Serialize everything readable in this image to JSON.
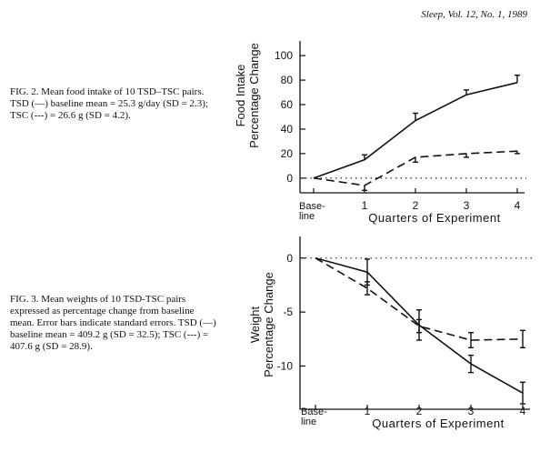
{
  "header": {
    "citation": "Sleep, Vol. 12, No. 1, 1989"
  },
  "captions": {
    "fig2": {
      "label": "FIG. 2.",
      "text": "Mean food intake of 10 TSD–TSC pairs. TSD (—) baseline mean = 25.3 g/day (SD = 2.3); TSC (---) = 26.6 g (SD = 4.2)."
    },
    "fig3": {
      "label": "FIG. 3.",
      "text": "Mean weights of 10 TSD-TSC pairs expressed as percentage change from baseline mean. Error bars indicate standard errors. TSD (—) baseline mean = 409.2 g (SD = 32.5); TSC (---) = 407.6 g (SD = 28.9)."
    }
  },
  "chart_data": [
    {
      "type": "line",
      "title": "",
      "ylabel": "Food Intake Percentage Change",
      "xlabel": "Quarters of Experiment",
      "categories": [
        "Base-line",
        "1",
        "2",
        "3",
        "4"
      ],
      "x": [
        0,
        1,
        2,
        3,
        4
      ],
      "ylim": [
        -12,
        112
      ],
      "yticks": [
        0,
        20,
        40,
        60,
        80,
        100
      ],
      "baseline_dotted": true,
      "series": [
        {
          "style": "solid",
          "values": [
            0,
            15,
            47,
            68,
            78
          ],
          "se": [
            0,
            4,
            6,
            4,
            6
          ],
          "bar_dir": "up"
        },
        {
          "style": "dashed",
          "values": [
            0,
            -6,
            17,
            20,
            22
          ],
          "se": [
            0,
            4,
            4,
            3,
            2
          ],
          "bar_dir": "down"
        }
      ]
    },
    {
      "type": "line",
      "title": "",
      "ylabel": "Weight Percentage Change",
      "xlabel": "Quarters of Experiment",
      "categories": [
        "Base-line",
        "1",
        "2",
        "3",
        "4"
      ],
      "x": [
        0,
        1,
        2,
        3,
        4
      ],
      "ylim": [
        -14,
        2
      ],
      "yticks": [
        0,
        -5,
        -10
      ],
      "baseline_dotted": true,
      "series": [
        {
          "style": "solid",
          "values": [
            0,
            -1.3,
            -6.2,
            -9.8,
            -12.5
          ],
          "se": [
            0,
            1.2,
            1.4,
            0.8,
            1.0
          ],
          "bar_dir": "both"
        },
        {
          "style": "dashed",
          "values": [
            0,
            -2.8,
            -6.3,
            -7.6,
            -7.5
          ],
          "se": [
            0,
            0.6,
            0.6,
            0.7,
            0.8
          ],
          "bar_dir": "both"
        }
      ]
    }
  ]
}
